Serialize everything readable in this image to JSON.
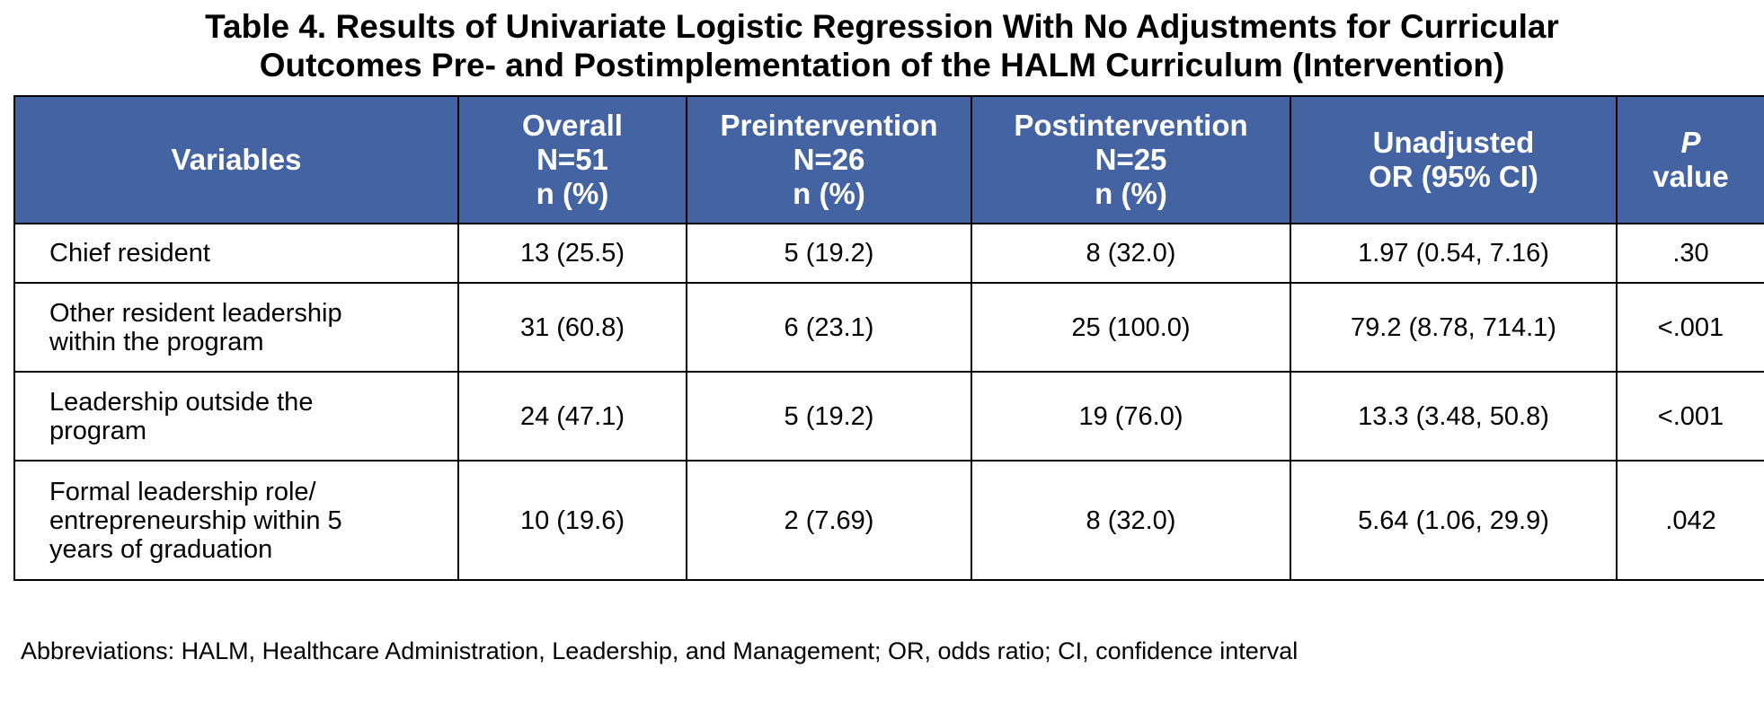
{
  "title": {
    "line1": "Table 4. Results of Univariate Logistic Regression With No Adjustments for Curricular",
    "line2": "Outcomes Pre- and Postimplementation of the HALM Curriculum (Intervention)"
  },
  "colors": {
    "header_bg": "#4463a3",
    "header_text": "#ffffff",
    "border": "#000000"
  },
  "header": {
    "variables": "Variables",
    "overall": [
      "Overall",
      "N=51",
      "n (%)"
    ],
    "pre": [
      "Preintervention",
      "N=26",
      "n (%)"
    ],
    "post": [
      "Postintervention",
      "N=25",
      "n (%)"
    ],
    "or": [
      "Unadjusted",
      "OR (95% CI)"
    ],
    "p": [
      "P",
      "value"
    ]
  },
  "rows": [
    {
      "variable": [
        "Chief resident"
      ],
      "overall": "13 (25.5)",
      "pre": "5 (19.2)",
      "post": "8 (32.0)",
      "or": "1.97 (0.54, 7.16)",
      "p": ".30"
    },
    {
      "variable": [
        "Other resident leadership",
        "within the program"
      ],
      "overall": "31 (60.8)",
      "pre": "6 (23.1)",
      "post": "25 (100.0)",
      "or": "79.2 (8.78, 714.1)",
      "p": "<.001"
    },
    {
      "variable": [
        "Leadership outside the",
        "program"
      ],
      "overall": "24 (47.1)",
      "pre": "5 (19.2)",
      "post": "19 (76.0)",
      "or": "13.3 (3.48, 50.8)",
      "p": "<.001"
    },
    {
      "variable": [
        "Formal leadership role/",
        "entrepreneurship within 5",
        "years of graduation"
      ],
      "overall": "10 (19.6)",
      "pre": "2 (7.69)",
      "post": "8 (32.0)",
      "or": "5.64 (1.06, 29.9)",
      "p": ".042"
    }
  ],
  "footnote": "Abbreviations: HALM, Healthcare Administration, Leadership, and Management; OR, odds ratio; CI, confidence interval"
}
